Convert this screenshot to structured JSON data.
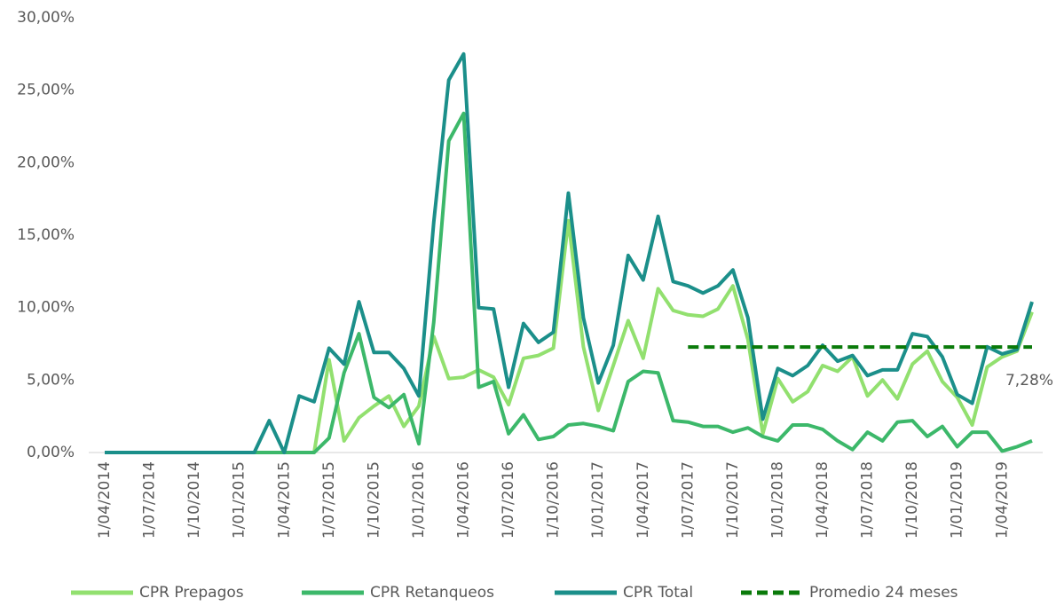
{
  "chart_data": {
    "type": "line",
    "categories": [
      "1/04/2014",
      null,
      null,
      "1/07/2014",
      null,
      null,
      "1/10/2014",
      null,
      null,
      "1/01/2015",
      null,
      null,
      "1/04/2015",
      null,
      null,
      "1/07/2015",
      null,
      null,
      "1/10/2015",
      null,
      null,
      "1/01/2016",
      null,
      null,
      "1/04/2016",
      null,
      null,
      "1/07/2016",
      null,
      null,
      "1/10/2016",
      null,
      null,
      "1/01/2017",
      null,
      null,
      "1/04/2017",
      null,
      null,
      "1/07/2017",
      null,
      null,
      "1/10/2017",
      null,
      null,
      "1/01/2018",
      null,
      null,
      "1/04/2018",
      null,
      null,
      "1/07/2018",
      null,
      null,
      "1/10/2018",
      null,
      null,
      "1/01/2019",
      null,
      null,
      "1/04/2019",
      null,
      null
    ],
    "series": [
      {
        "name": "CPR Prepagos",
        "color": "#92e06f",
        "values": [
          0,
          0,
          0,
          0,
          0,
          0,
          0,
          0,
          0,
          0,
          0,
          0,
          0,
          0,
          0,
          6.4,
          0.8,
          2.4,
          3.2,
          3.9,
          1.8,
          3.2,
          8.0,
          5.1,
          5.2,
          5.7,
          5.2,
          3.3,
          6.5,
          6.7,
          7.2,
          16.0,
          7.3,
          2.9,
          6.0,
          9.1,
          6.5,
          11.3,
          9.8,
          9.5,
          9.4,
          9.9,
          11.5,
          7.8,
          1.3,
          5.1,
          3.5,
          4.2,
          6.0,
          5.6,
          6.6,
          3.9,
          5.0,
          3.7,
          6.1,
          7.0,
          4.9,
          3.8,
          1.9,
          5.9,
          6.6,
          7.0,
          9.7
        ]
      },
      {
        "name": "CPR Retanqueos",
        "color": "#3cb86a",
        "values": [
          0,
          0,
          0,
          0,
          0,
          0,
          0,
          0,
          0,
          0,
          0,
          0,
          0,
          0,
          0,
          1.0,
          5.5,
          8.2,
          3.8,
          3.1,
          4.0,
          0.6,
          9.0,
          21.5,
          23.4,
          4.5,
          4.9,
          1.3,
          2.6,
          0.9,
          1.1,
          1.9,
          2.0,
          1.8,
          1.5,
          4.9,
          5.6,
          5.5,
          2.2,
          2.1,
          1.8,
          1.8,
          1.4,
          1.7,
          1.1,
          0.8,
          1.9,
          1.9,
          1.6,
          0.8,
          0.2,
          1.4,
          0.8,
          2.1,
          2.2,
          1.1,
          1.8,
          0.4,
          1.4,
          1.4,
          0.1,
          0.4,
          0.8
        ]
      },
      {
        "name": "CPR Total",
        "color": "#1b8f8a",
        "values": [
          0,
          0,
          0,
          0,
          0,
          0,
          0,
          0,
          0,
          0,
          0,
          2.2,
          0,
          3.9,
          3.5,
          7.2,
          6.1,
          10.4,
          6.9,
          6.9,
          5.8,
          3.9,
          15.9,
          25.7,
          27.5,
          10.0,
          9.9,
          4.5,
          8.9,
          7.6,
          8.3,
          17.9,
          9.3,
          4.8,
          7.4,
          13.6,
          11.9,
          16.3,
          11.8,
          11.5,
          11.0,
          11.5,
          12.6,
          9.3,
          2.3,
          5.8,
          5.3,
          6.0,
          7.4,
          6.3,
          6.7,
          5.3,
          5.7,
          5.7,
          8.2,
          8.0,
          6.6,
          4.0,
          3.4,
          7.3,
          6.8,
          7.1,
          10.4
        ]
      },
      {
        "name": "Promedio 24 meses",
        "color": "#0a7a0a",
        "dash": true,
        "values": [
          null,
          null,
          null,
          null,
          null,
          null,
          null,
          null,
          null,
          null,
          null,
          null,
          null,
          null,
          null,
          null,
          null,
          null,
          null,
          null,
          null,
          null,
          null,
          null,
          null,
          null,
          null,
          null,
          null,
          null,
          null,
          null,
          null,
          null,
          null,
          null,
          null,
          null,
          null,
          7.28,
          7.28,
          7.28,
          7.28,
          7.28,
          7.28,
          7.28,
          7.28,
          7.28,
          7.28,
          7.28,
          7.28,
          7.28,
          7.28,
          7.28,
          7.28,
          7.28,
          7.28,
          7.28,
          7.28,
          7.28,
          7.28,
          7.28,
          7.28
        ],
        "value_labels": [
          null,
          null,
          null,
          null,
          null,
          null,
          null,
          null,
          null,
          null,
          null,
          null,
          null,
          null,
          null,
          null,
          null,
          null,
          null,
          null,
          null,
          null,
          null,
          null,
          null,
          null,
          null,
          null,
          null,
          null,
          null,
          null,
          null,
          null,
          null,
          null,
          null,
          null,
          null,
          null,
          null,
          null,
          null,
          null,
          null,
          null,
          null,
          null,
          null,
          null,
          null,
          null,
          null,
          null,
          null,
          null,
          null,
          null,
          null,
          null,
          null,
          null,
          "7,28%"
        ]
      }
    ],
    "ylim": [
      0,
      30
    ],
    "yticks": [
      {
        "value": 0,
        "label": "0,00%"
      },
      {
        "value": 5,
        "label": "5,00%"
      },
      {
        "value": 10,
        "label": "10,00%"
      },
      {
        "value": 15,
        "label": "15,00%"
      },
      {
        "value": 20,
        "label": "20,00%"
      },
      {
        "value": 25,
        "label": "25,00%"
      },
      {
        "value": 30,
        "label": "30,00%"
      }
    ],
    "legend": "bottom"
  }
}
